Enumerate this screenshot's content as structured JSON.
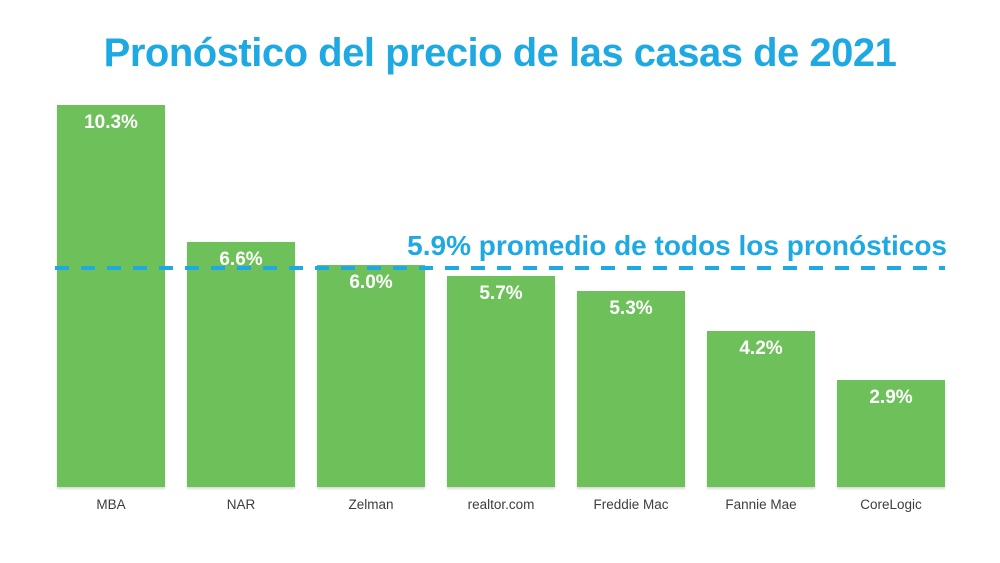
{
  "title": "Pronóstico del precio de las casas de 2021",
  "average_annotation": {
    "label": "5.9% promedio de todos los pronósticos",
    "value_label": "5.9%"
  },
  "chart_data": {
    "type": "bar",
    "title": "Pronóstico del precio de las casas de 2021",
    "categories": [
      "MBA",
      "NAR",
      "Zelman",
      "realtor.com",
      "Freddie Mac",
      "Fannie Mae",
      "CoreLogic"
    ],
    "values": [
      10.3,
      6.6,
      6.0,
      5.7,
      5.3,
      4.2,
      2.9
    ],
    "value_labels": [
      "10.3%",
      "6.6%",
      "6.0%",
      "5.7%",
      "5.3%",
      "4.2%",
      "2.9%"
    ],
    "unit": "%",
    "xlabel": "",
    "ylabel": "",
    "ylim": [
      0,
      10.6
    ],
    "grid": false,
    "legend": false,
    "average_line": {
      "value": 5.9,
      "label": "5.9% promedio de todos los pronósticos",
      "style": "dashed"
    },
    "colors": {
      "bar_green": "#6EC15A",
      "accent_blue": "#1FA9E2",
      "value_label_white": "#FFFFFF",
      "category_label_gray": "#3D3D3D",
      "background": "#FFFFFF"
    }
  }
}
